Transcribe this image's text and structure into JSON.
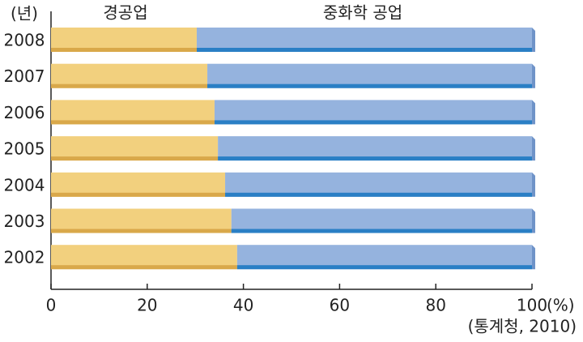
{
  "chart_data": {
    "type": "stacked-bar-horizontal",
    "y_label": "(년)",
    "x_label": "(%)",
    "source": "(통계청, 2010)",
    "categories": [
      "2008",
      "2007",
      "2006",
      "2005",
      "2004",
      "2003",
      "2002"
    ],
    "series": [
      {
        "name": "경공업",
        "color": "#f2d07e",
        "values": [
          30.3,
          32.5,
          34,
          34.7,
          36.2,
          37.5,
          38.7
        ]
      },
      {
        "name": "중화학 공업",
        "color": "#95b3de",
        "values": [
          69.7,
          67.5,
          66,
          65.3,
          63.8,
          62.5,
          61.3
        ]
      }
    ],
    "xlim": [
      0,
      100
    ],
    "xticks": [
      0,
      20,
      40,
      60,
      80,
      100
    ]
  }
}
